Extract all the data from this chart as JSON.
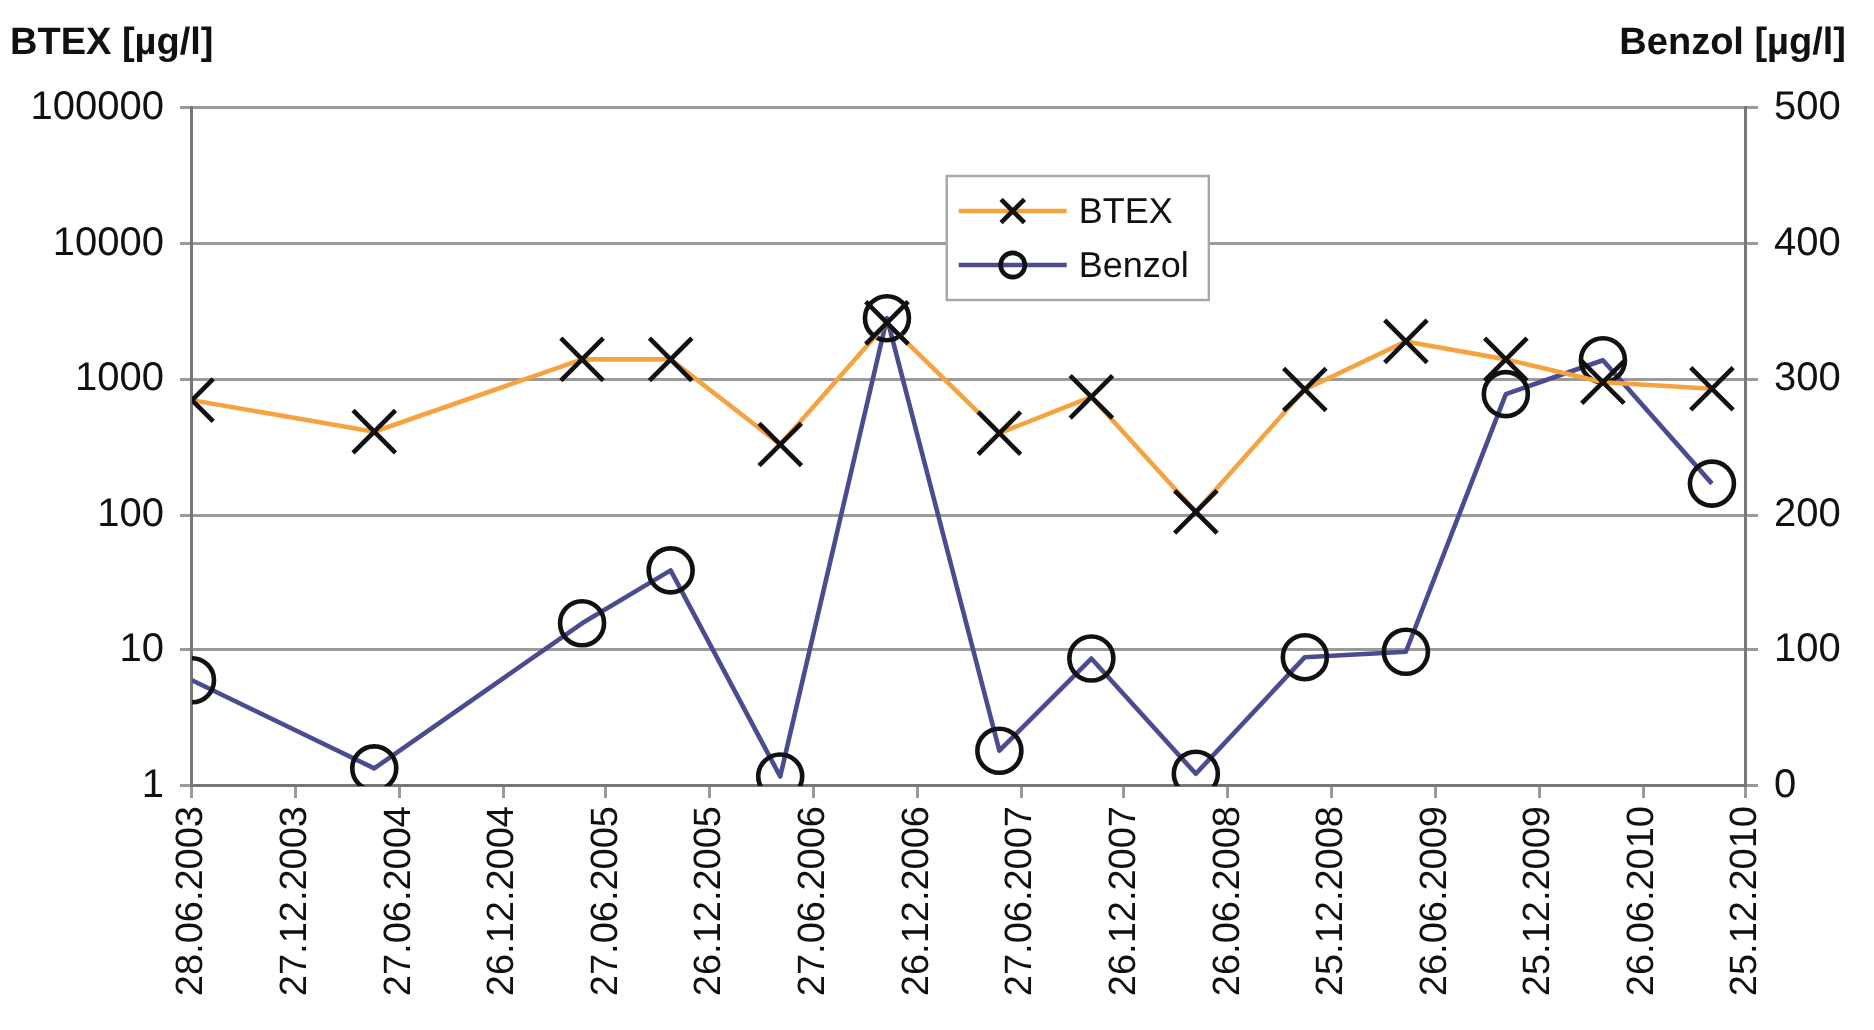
{
  "chart_data": {
    "type": "line",
    "ylabel": "BTEX [µg/l]",
    "y2label": "Benzol [µg/l]",
    "x": [
      "2003-06-28",
      "2004-05-14",
      "2005-05-15",
      "2005-10-18",
      "2006-04-29",
      "2006-11-03",
      "2007-05-20",
      "2007-10-29",
      "2008-04-30",
      "2008-11-08",
      "2009-05-05",
      "2009-10-28",
      "2010-04-17",
      "2010-10-26"
    ],
    "series": [
      {
        "name": "BTEX",
        "color": "#f4a340",
        "marker": "cross",
        "values": [
          700,
          410,
          1400,
          1400,
          330,
          2600,
          400,
          740,
          105,
          840,
          1900,
          1400,
          950,
          850
        ]
      },
      {
        "name": "Benzol",
        "color": "#4b4b8f",
        "marker": "circle",
        "axis": "y2",
        "values": [
          78,
          13,
          120,
          159,
          7,
          345,
          26,
          94,
          9,
          95,
          99,
          289,
          314,
          223
        ]
      }
    ],
    "xlim": [
      "2003-06-28",
      "2010-12-25"
    ],
    "xticks": [
      {
        "value": "2003-06-28",
        "label": "28.06.2003"
      },
      {
        "value": "2003-12-27",
        "label": "27.12.2003"
      },
      {
        "value": "2004-06-27",
        "label": "27.06.2004"
      },
      {
        "value": "2004-12-26",
        "label": "26.12.2004"
      },
      {
        "value": "2005-06-27",
        "label": "27.06.2005"
      },
      {
        "value": "2005-12-26",
        "label": "26.12.2005"
      },
      {
        "value": "2006-06-27",
        "label": "27.06.2006"
      },
      {
        "value": "2006-12-26",
        "label": "26.12.2006"
      },
      {
        "value": "2007-06-27",
        "label": "27.06.2007"
      },
      {
        "value": "2007-12-26",
        "label": "26.12.2007"
      },
      {
        "value": "2008-06-26",
        "label": "26.06.2008"
      },
      {
        "value": "2008-12-25",
        "label": "25.12.2008"
      },
      {
        "value": "2009-06-26",
        "label": "26.06.2009"
      },
      {
        "value": "2009-12-25",
        "label": "25.12.2009"
      },
      {
        "value": "2010-06-26",
        "label": "26.06.2010"
      },
      {
        "value": "2010-12-25",
        "label": "25.12.2010"
      }
    ],
    "ylim": [
      1,
      100000
    ],
    "yticks": [
      1,
      10,
      100,
      1000,
      10000,
      100000
    ],
    "y2lim": [
      0,
      500
    ],
    "y2ticks": [
      0,
      100,
      200,
      300,
      400,
      500
    ],
    "log": "y",
    "grid": "y",
    "legend": "top"
  }
}
